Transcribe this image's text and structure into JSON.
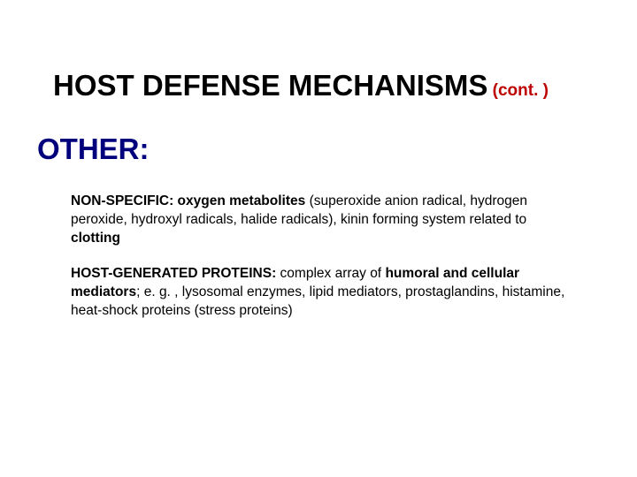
{
  "colors": {
    "background": "#ffffff",
    "title_main": "#000000",
    "title_cont": "#bf0000",
    "section_heading": "#00007d",
    "body_text": "#000000"
  },
  "typography": {
    "title_fontsize": 33,
    "cont_fontsize": 19,
    "section_fontsize": 33,
    "body_fontsize": 15.5,
    "font_family": "Arial"
  },
  "title": {
    "main": "HOST DEFENSE MECHANISMS",
    "cont": " (cont. )"
  },
  "section": "OTHER:",
  "para1": {
    "lead": "NON-SPECIFIC:  oxygen metabolites ",
    "mid": "(superoxide anion radical, hydrogen peroxide, hydroxyl radicals, halide radicals), kinin forming system related to ",
    "tail": "clotting"
  },
  "para2": {
    "lead": "HOST-GENERATED PROTEINS:  ",
    "mid1": "complex array of ",
    "bold1": "humoral and cellular mediators",
    "mid2": ";  e. g. , lysosomal enzymes,  lipid mediators, prostaglandins, histamine, heat-shock proteins (stress proteins)"
  }
}
